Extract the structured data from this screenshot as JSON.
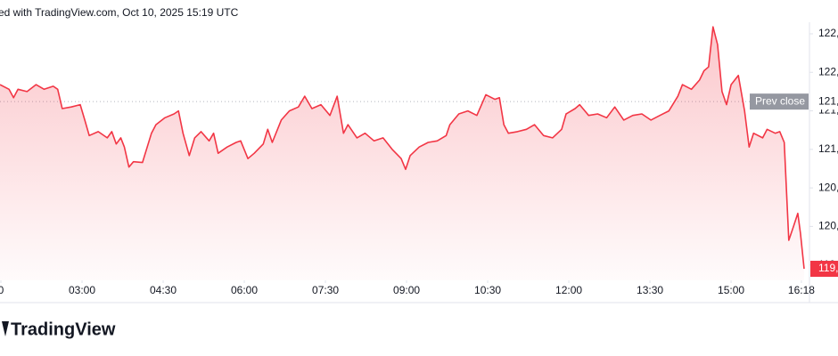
{
  "header": {
    "text": "ed with TradingView.com, Oct 10, 2025 15:19 UTC"
  },
  "chart_data": {
    "type": "area",
    "color": "#f23645",
    "x": [
      89,
      99,
      104,
      109,
      119,
      129,
      138,
      148,
      153,
      158,
      168,
      178,
      183,
      188,
      198,
      208,
      213,
      218,
      223,
      227,
      232,
      237,
      247,
      257,
      262,
      272,
      282,
      287,
      292,
      299,
      305,
      312,
      321,
      326,
      331,
      341,
      351,
      356,
      364,
      371,
      381,
      386,
      391,
      401,
      410,
      420,
      427,
      435,
      445,
      455,
      463,
      470,
      475,
      485,
      494,
      504,
      514,
      524,
      534,
      539,
      544,
      554,
      564,
      574,
      584,
      588,
      598,
      608,
      618,
      628,
      638,
      643,
      648,
      653,
      663,
      673,
      682,
      692,
      702,
      712,
      717,
      727,
      732,
      742,
      752,
      762,
      771,
      781,
      791,
      801,
      811,
      821,
      831,
      841,
      846,
      856,
      865,
      870,
      875,
      880,
      885,
      890,
      895,
      900,
      908,
      915,
      920,
      925,
      935,
      940,
      949,
      954,
      959,
      964,
      969,
      974,
      977,
      981
    ],
    "series": [
      {
        "values": [
          121.84,
          121.78,
          121.67,
          121.78,
          121.75,
          121.84,
          121.78,
          121.82,
          121.78,
          121.53,
          121.55,
          121.58,
          121.38,
          121.18,
          121.23,
          121.15,
          121.23,
          121.07,
          121.15,
          121.03,
          120.77,
          120.84,
          120.83,
          121.21,
          121.32,
          121.41,
          121.46,
          121.5,
          121.21,
          120.92,
          121.15,
          121.23,
          121.11,
          121.21,
          120.95,
          121.03,
          121.09,
          121.11,
          120.88,
          120.95,
          121.07,
          121.26,
          121.09,
          121.38,
          121.5,
          121.55,
          121.69,
          121.53,
          121.58,
          121.44,
          121.69,
          121.21,
          121.32,
          121.15,
          121.21,
          121.11,
          121.15,
          121.0,
          120.88,
          120.74,
          120.92,
          121.03,
          121.09,
          121.11,
          121.18,
          121.32,
          121.46,
          121.5,
          121.44,
          121.71,
          121.65,
          121.67,
          121.32,
          121.21,
          121.23,
          121.26,
          121.32,
          121.18,
          121.15,
          121.26,
          121.46,
          121.53,
          121.58,
          121.44,
          121.46,
          121.41,
          121.55,
          121.38,
          121.44,
          121.46,
          121.38,
          121.44,
          121.5,
          121.69,
          121.84,
          121.78,
          121.9,
          122.02,
          122.07,
          122.59,
          122.36,
          121.75,
          121.58,
          121.84,
          121.96,
          121.5,
          121.03,
          121.21,
          121.15,
          121.26,
          121.21,
          121.23,
          121.09,
          119.82,
          119.99,
          120.17,
          119.91,
          119.45
        ]
      }
    ],
    "xlim": [
      89,
      984
    ],
    "ylim": [
      119.3,
      122.65
    ],
    "xticks": [
      {
        "value": 90,
        "label": "0"
      },
      {
        "value": 180,
        "label": "03:00"
      },
      {
        "value": 270,
        "label": "04:30"
      },
      {
        "value": 360,
        "label": "06:00"
      },
      {
        "value": 450,
        "label": "07:30"
      },
      {
        "value": 540,
        "label": "09:00"
      },
      {
        "value": 630,
        "label": "10:30"
      },
      {
        "value": 720,
        "label": "12:00"
      },
      {
        "value": 810,
        "label": "13:30"
      },
      {
        "value": 900,
        "label": "15:00"
      },
      {
        "value": 978,
        "label": "16:18"
      }
    ],
    "yticks": [
      {
        "value": 122.5,
        "label": "122,"
      },
      {
        "value": 122.0,
        "label": "122,"
      },
      {
        "value": 121.5,
        "label": "121,"
      },
      {
        "value": 121.0,
        "label": "121,"
      },
      {
        "value": 120.5,
        "label": "120,"
      },
      {
        "value": 120.0,
        "label": "120,"
      },
      {
        "value": 119.5,
        "label": "119,"
      }
    ],
    "prev_close": {
      "name": "Prev close",
      "value": 121.62,
      "label": "121,"
    },
    "last_price": {
      "value": 119.45,
      "label": "119,"
    }
  },
  "footer": {
    "logo": "TradingView"
  }
}
